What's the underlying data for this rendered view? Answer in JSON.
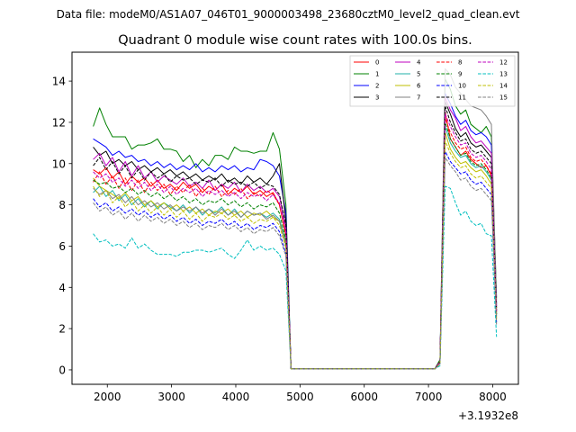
{
  "figure": {
    "suptitle": "Data file: modeM0/AS1A07_046T01_9000003498_23680cztM0_level2_quad_clean.evt"
  },
  "chart_data": {
    "type": "line",
    "title": "Quadrant 0 module wise count rates with 100.0s bins.",
    "xlabel": "",
    "ylabel": "",
    "x_offset_label": "+3.1932e8",
    "xlim": [
      1450,
      8400
    ],
    "ylim": [
      -0.7,
      15.4
    ],
    "xticks": [
      2000,
      3000,
      4000,
      5000,
      6000,
      7000,
      8000
    ],
    "xtick_labels": [
      "2000",
      "3000",
      "4000",
      "5000",
      "6000",
      "7000",
      "8000"
    ],
    "yticks": [
      0,
      2,
      4,
      6,
      8,
      10,
      12,
      14
    ],
    "ytick_labels": [
      "0",
      "2",
      "4",
      "6",
      "8",
      "10",
      "12",
      "14"
    ],
    "legend_location": "upper right",
    "x": [
      1780,
      1880,
      1980,
      2080,
      2180,
      2280,
      2380,
      2480,
      2580,
      2680,
      2780,
      2880,
      2980,
      3080,
      3180,
      3280,
      3380,
      3480,
      3580,
      3680,
      3780,
      3880,
      3980,
      4080,
      4180,
      4280,
      4380,
      4480,
      4580,
      4680,
      4780,
      4860,
      4900,
      5000,
      5200,
      5400,
      5600,
      5800,
      6000,
      6200,
      6400,
      6600,
      6800,
      7000,
      7100,
      7180,
      7260,
      7340,
      7420,
      7500,
      7580,
      7660,
      7740,
      7820,
      7900,
      7980,
      8060
    ],
    "series": [
      {
        "name": "0",
        "color": "#ff0000",
        "dash": false,
        "values": [
          9.7,
          9.5,
          9.8,
          9.3,
          9.6,
          9.0,
          9.4,
          9.1,
          9.3,
          8.9,
          9.2,
          8.8,
          9.0,
          8.7,
          9.1,
          8.8,
          9.0,
          8.6,
          8.9,
          8.7,
          9.0,
          8.5,
          8.8,
          8.6,
          8.9,
          8.5,
          8.7,
          8.4,
          8.6,
          8.0,
          6.5,
          0.05,
          0.05,
          0.05,
          0.05,
          0.05,
          0.05,
          0.05,
          0.05,
          0.05,
          0.05,
          0.05,
          0.05,
          0.05,
          0.05,
          0.4,
          12.5,
          11.2,
          10.8,
          10.4,
          10.6,
          10.2,
          10.0,
          9.8,
          9.9,
          9.4,
          2.8
        ]
      },
      {
        "name": "1",
        "color": "#008000",
        "dash": false,
        "values": [
          11.8,
          12.7,
          11.9,
          11.3,
          11.3,
          11.3,
          10.7,
          10.9,
          10.9,
          11.0,
          11.2,
          10.7,
          10.7,
          10.6,
          10.1,
          10.4,
          9.8,
          10.2,
          9.9,
          10.4,
          10.4,
          10.2,
          10.8,
          10.6,
          10.6,
          10.5,
          10.6,
          10.6,
          11.5,
          10.7,
          8.0,
          0.05,
          0.05,
          0.05,
          0.05,
          0.05,
          0.05,
          0.05,
          0.05,
          0.05,
          0.05,
          0.05,
          0.05,
          0.05,
          0.05,
          0.5,
          14.1,
          13.6,
          12.8,
          12.4,
          12.6,
          11.9,
          11.7,
          11.5,
          11.8,
          11.3,
          3.5
        ]
      },
      {
        "name": "2",
        "color": "#0000ff",
        "dash": false,
        "values": [
          11.2,
          11.0,
          10.8,
          10.4,
          10.6,
          10.3,
          10.4,
          10.1,
          10.2,
          9.9,
          10.1,
          9.8,
          10.0,
          9.7,
          9.9,
          9.7,
          10.0,
          9.6,
          9.8,
          9.6,
          9.9,
          9.7,
          9.9,
          9.6,
          9.8,
          9.7,
          10.2,
          10.1,
          9.9,
          9.4,
          7.6,
          0.05,
          0.05,
          0.05,
          0.05,
          0.05,
          0.05,
          0.05,
          0.05,
          0.05,
          0.05,
          0.05,
          0.05,
          0.05,
          0.05,
          0.4,
          13.4,
          12.9,
          12.3,
          11.9,
          12.1,
          11.6,
          11.4,
          11.5,
          11.3,
          10.9,
          3.2
        ]
      },
      {
        "name": "3",
        "color": "#000000",
        "dash": false,
        "values": [
          10.8,
          10.4,
          10.6,
          10.0,
          10.2,
          9.9,
          10.1,
          9.7,
          9.9,
          9.6,
          9.8,
          9.5,
          9.7,
          9.4,
          9.6,
          9.3,
          9.5,
          9.2,
          9.4,
          9.2,
          9.5,
          9.1,
          9.3,
          9.0,
          9.4,
          9.1,
          9.3,
          9.0,
          9.4,
          10.0,
          7.2,
          0.05,
          0.05,
          0.05,
          0.05,
          0.05,
          0.05,
          0.05,
          0.05,
          0.05,
          0.05,
          0.05,
          0.05,
          0.05,
          0.05,
          0.4,
          13.0,
          12.4,
          11.7,
          11.3,
          11.5,
          11.0,
          10.8,
          10.9,
          10.6,
          10.3,
          3.0
        ]
      },
      {
        "name": "4",
        "color": "#bf00bf",
        "dash": false,
        "values": [
          10.2,
          10.5,
          9.9,
          10.3,
          9.6,
          10.1,
          9.4,
          9.9,
          9.3,
          9.6,
          9.1,
          9.4,
          9.2,
          9.0,
          9.3,
          8.9,
          9.1,
          8.8,
          9.2,
          8.7,
          9.0,
          8.8,
          9.1,
          8.6,
          9.0,
          8.7,
          8.9,
          8.6,
          8.8,
          8.4,
          6.9,
          0.05,
          0.05,
          0.05,
          0.05,
          0.05,
          0.05,
          0.05,
          0.05,
          0.05,
          0.05,
          0.05,
          0.05,
          0.05,
          0.05,
          0.4,
          13.2,
          12.6,
          12.2,
          11.6,
          11.8,
          11.3,
          11.0,
          11.1,
          10.8,
          10.5,
          3.1
        ]
      },
      {
        "name": "5",
        "color": "#20b2aa",
        "dash": false,
        "values": [
          8.6,
          8.9,
          8.4,
          8.7,
          8.2,
          8.5,
          8.0,
          8.3,
          7.9,
          8.2,
          7.8,
          8.1,
          7.9,
          7.7,
          8.0,
          7.6,
          7.9,
          7.5,
          7.8,
          7.6,
          7.9,
          7.5,
          7.8,
          7.4,
          7.7,
          7.5,
          7.6,
          7.4,
          7.6,
          7.3,
          6.2,
          0.05,
          0.05,
          0.05,
          0.05,
          0.05,
          0.05,
          0.05,
          0.05,
          0.05,
          0.05,
          0.05,
          0.05,
          0.05,
          0.05,
          0.3,
          11.8,
          11.0,
          10.6,
          10.3,
          10.4,
          10.0,
          9.8,
          9.9,
          9.6,
          9.2,
          2.6
        ]
      },
      {
        "name": "6",
        "color": "#bfbf00",
        "dash": false,
        "values": [
          9.3,
          8.9,
          8.7,
          8.5,
          8.3,
          8.6,
          8.2,
          8.4,
          8.0,
          8.2,
          7.9,
          8.1,
          7.8,
          8.0,
          7.7,
          7.9,
          7.6,
          7.8,
          7.5,
          7.7,
          7.6,
          7.8,
          7.5,
          7.7,
          7.4,
          7.6,
          7.5,
          7.7,
          7.4,
          7.2,
          6.1,
          0.05,
          0.05,
          0.05,
          0.05,
          0.05,
          0.05,
          0.05,
          0.05,
          0.05,
          0.05,
          0.05,
          0.05,
          0.05,
          0.05,
          0.3,
          11.5,
          10.7,
          10.3,
          10.0,
          10.1,
          9.8,
          9.6,
          9.7,
          9.4,
          9.0,
          2.5
        ]
      },
      {
        "name": "7",
        "color": "#808080",
        "dash": false,
        "values": [
          8.8,
          8.5,
          8.7,
          8.3,
          8.5,
          8.1,
          8.4,
          8.0,
          8.2,
          7.9,
          8.1,
          7.8,
          8.0,
          7.7,
          7.9,
          7.7,
          7.9,
          7.6,
          7.8,
          7.5,
          7.8,
          7.5,
          7.7,
          7.4,
          7.7,
          7.5,
          7.6,
          7.3,
          7.5,
          7.2,
          6.0,
          0.05,
          0.05,
          0.05,
          0.05,
          0.05,
          0.05,
          0.05,
          0.05,
          0.05,
          0.05,
          0.05,
          0.05,
          0.05,
          0.05,
          0.4,
          14.6,
          14.3,
          13.7,
          13.4,
          13.1,
          12.8,
          12.7,
          12.6,
          12.3,
          11.9,
          3.4
        ]
      },
      {
        "name": "8",
        "color": "#ff0000",
        "dash": true,
        "values": [
          9.1,
          9.6,
          9.0,
          9.4,
          8.8,
          9.3,
          8.7,
          9.2,
          8.6,
          9.1,
          8.7,
          9.0,
          8.5,
          8.9,
          8.6,
          9.0,
          8.4,
          8.8,
          8.5,
          8.9,
          8.4,
          8.7,
          8.5,
          8.8,
          8.3,
          8.6,
          8.4,
          8.7,
          8.5,
          8.0,
          6.6,
          0.05,
          0.05,
          0.05,
          0.05,
          0.05,
          0.05,
          0.05,
          0.05,
          0.05,
          0.05,
          0.05,
          0.05,
          0.05,
          0.05,
          0.4,
          12.2,
          11.5,
          11.0,
          10.7,
          10.8,
          10.3,
          10.1,
          10.2,
          9.9,
          9.5,
          2.7
        ]
      },
      {
        "name": "9",
        "color": "#008000",
        "dash": true,
        "values": [
          9.2,
          9.0,
          9.1,
          8.8,
          8.9,
          8.6,
          8.8,
          8.5,
          8.7,
          8.4,
          8.6,
          8.3,
          8.5,
          8.2,
          8.4,
          8.1,
          8.3,
          8.0,
          8.2,
          8.1,
          8.3,
          8.0,
          8.2,
          7.9,
          8.1,
          7.8,
          8.0,
          7.9,
          8.1,
          7.6,
          6.3,
          0.05,
          0.05,
          0.05,
          0.05,
          0.05,
          0.05,
          0.05,
          0.05,
          0.05,
          0.05,
          0.05,
          0.05,
          0.05,
          0.05,
          0.3,
          12.0,
          11.2,
          10.8,
          10.4,
          10.5,
          10.1,
          9.9,
          10.0,
          9.7,
          9.3,
          2.7
        ]
      },
      {
        "name": "10",
        "color": "#0000ff",
        "dash": true,
        "values": [
          8.3,
          7.9,
          8.1,
          7.7,
          7.9,
          7.6,
          7.8,
          7.5,
          7.7,
          7.4,
          7.6,
          7.3,
          7.5,
          7.2,
          7.4,
          7.1,
          7.3,
          7.0,
          7.2,
          7.1,
          7.3,
          7.0,
          7.2,
          6.9,
          7.1,
          6.8,
          7.0,
          6.9,
          7.1,
          6.7,
          5.6,
          0.05,
          0.05,
          0.05,
          0.05,
          0.05,
          0.05,
          0.05,
          0.05,
          0.05,
          0.05,
          0.05,
          0.05,
          0.05,
          0.05,
          0.3,
          10.6,
          10.1,
          9.8,
          9.5,
          9.6,
          9.2,
          9.0,
          9.1,
          8.8,
          8.5,
          2.3
        ]
      },
      {
        "name": "11",
        "color": "#000000",
        "dash": true,
        "values": [
          9.9,
          10.3,
          9.7,
          10.1,
          9.5,
          9.9,
          9.3,
          9.7,
          9.2,
          9.6,
          9.3,
          9.5,
          9.1,
          9.4,
          9.2,
          9.3,
          9.0,
          9.2,
          9.1,
          9.3,
          8.9,
          9.2,
          9.0,
          9.1,
          8.9,
          9.1,
          8.8,
          9.0,
          8.9,
          8.5,
          7.0,
          0.05,
          0.05,
          0.05,
          0.05,
          0.05,
          0.05,
          0.05,
          0.05,
          0.05,
          0.05,
          0.05,
          0.05,
          0.05,
          0.05,
          0.4,
          12.8,
          12.0,
          11.5,
          11.1,
          11.2,
          10.7,
          10.5,
          10.6,
          10.3,
          10.0,
          2.9
        ]
      },
      {
        "name": "12",
        "color": "#bf00bf",
        "dash": true,
        "values": [
          9.6,
          9.3,
          9.5,
          9.1,
          9.3,
          8.9,
          9.2,
          8.8,
          9.1,
          8.7,
          9.0,
          8.6,
          8.9,
          8.5,
          8.8,
          8.6,
          8.8,
          8.4,
          8.7,
          8.5,
          8.7,
          8.4,
          8.6,
          8.3,
          8.6,
          8.4,
          8.5,
          8.2,
          8.5,
          8.1,
          6.7,
          0.05,
          0.05,
          0.05,
          0.05,
          0.05,
          0.05,
          0.05,
          0.05,
          0.05,
          0.05,
          0.05,
          0.05,
          0.05,
          0.05,
          0.4,
          12.4,
          11.8,
          11.3,
          10.9,
          11.0,
          10.5,
          10.3,
          10.4,
          10.1,
          9.7,
          2.8
        ]
      },
      {
        "name": "13",
        "color": "#00bfbf",
        "dash": true,
        "values": [
          6.6,
          6.2,
          6.3,
          6.0,
          6.1,
          5.9,
          6.4,
          5.9,
          6.1,
          5.8,
          5.6,
          5.6,
          5.6,
          5.5,
          5.7,
          5.7,
          5.8,
          5.8,
          5.7,
          5.8,
          5.9,
          5.6,
          5.4,
          5.8,
          6.3,
          5.8,
          6.0,
          5.8,
          5.9,
          5.6,
          4.8,
          0.05,
          0.05,
          0.05,
          0.05,
          0.05,
          0.05,
          0.05,
          0.05,
          0.05,
          0.05,
          0.05,
          0.05,
          0.05,
          0.05,
          0.2,
          8.9,
          8.8,
          8.1,
          7.5,
          7.7,
          7.2,
          7.0,
          7.1,
          6.6,
          6.5,
          1.6
        ]
      },
      {
        "name": "14",
        "color": "#bfbf00",
        "dash": true,
        "values": [
          8.9,
          8.4,
          8.7,
          8.1,
          8.4,
          7.9,
          8.2,
          7.7,
          8.0,
          7.6,
          7.9,
          7.5,
          7.8,
          7.4,
          7.7,
          7.3,
          7.6,
          7.2,
          7.5,
          7.4,
          7.6,
          7.3,
          7.5,
          7.2,
          7.4,
          7.1,
          7.3,
          7.2,
          7.4,
          7.0,
          5.9,
          0.05,
          0.05,
          0.05,
          0.05,
          0.05,
          0.05,
          0.05,
          0.05,
          0.05,
          0.05,
          0.05,
          0.05,
          0.05,
          0.05,
          0.3,
          11.1,
          10.5,
          10.1,
          9.8,
          9.9,
          9.5,
          9.3,
          9.4,
          9.1,
          8.8,
          2.4
        ]
      },
      {
        "name": "15",
        "color": "#808080",
        "dash": true,
        "values": [
          8.1,
          7.7,
          7.9,
          7.5,
          7.7,
          7.3,
          7.6,
          7.2,
          7.5,
          7.2,
          7.4,
          7.1,
          7.3,
          7.0,
          7.2,
          6.9,
          7.1,
          6.8,
          7.0,
          6.9,
          7.1,
          6.8,
          7.0,
          6.7,
          6.9,
          6.6,
          6.8,
          6.7,
          6.9,
          6.5,
          5.5,
          0.05,
          0.05,
          0.05,
          0.05,
          0.05,
          0.05,
          0.05,
          0.05,
          0.05,
          0.05,
          0.05,
          0.05,
          0.05,
          0.05,
          0.3,
          10.3,
          9.9,
          9.6,
          9.2,
          9.3,
          8.9,
          8.7,
          8.8,
          8.5,
          8.2,
          2.2
        ]
      }
    ]
  }
}
